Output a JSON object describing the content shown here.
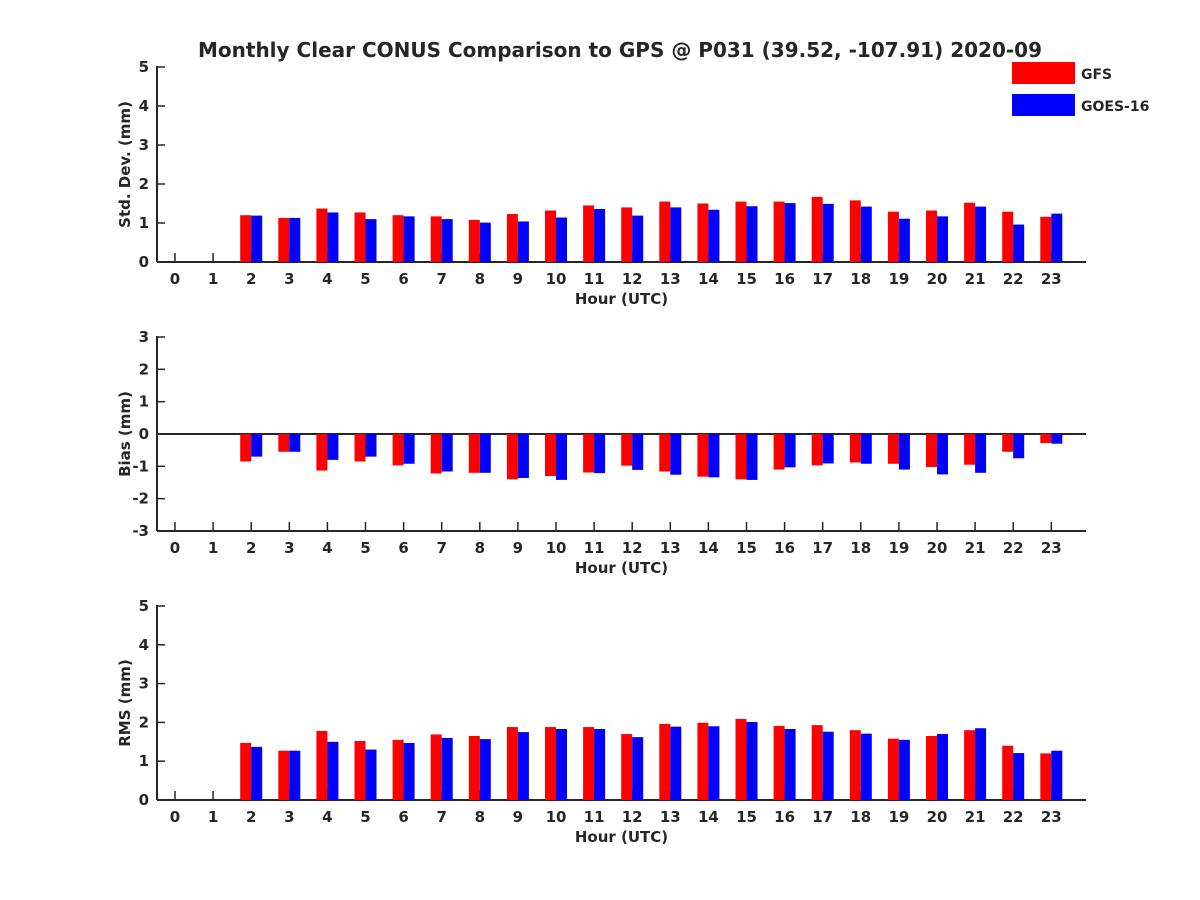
{
  "chart_data": {
    "type": "bar",
    "title": "Monthly Clear CONUS Comparison to GPS @ P031 (39.52, -107.91) 2020-09",
    "legend": {
      "placement": "top-right",
      "entries": [
        "GFS",
        "GOES-16"
      ]
    },
    "colors": {
      "GFS": "#ff0000",
      "GOES-16": "#0000ff"
    },
    "categories": [
      "0",
      "1",
      "2",
      "3",
      "4",
      "5",
      "6",
      "7",
      "8",
      "9",
      "10",
      "11",
      "12",
      "13",
      "14",
      "15",
      "16",
      "17",
      "18",
      "19",
      "20",
      "21",
      "22",
      "23"
    ],
    "panels": [
      {
        "ylabel": "Std. Dev. (mm)",
        "xlabel": "Hour (UTC)",
        "ylim": [
          0,
          5
        ],
        "yticks": [
          0,
          1,
          2,
          3,
          4,
          5
        ],
        "zero_line": false,
        "series": [
          {
            "name": "GFS",
            "values": [
              null,
              null,
              1.2,
              1.13,
              1.37,
              1.27,
              1.2,
              1.17,
              1.08,
              1.23,
              1.32,
              1.45,
              1.4,
              1.55,
              1.5,
              1.55,
              1.55,
              1.67,
              1.58,
              1.29,
              1.32,
              1.52,
              1.29,
              1.16
            ]
          },
          {
            "name": "GOES-16",
            "values": [
              null,
              null,
              1.19,
              1.13,
              1.27,
              1.1,
              1.17,
              1.1,
              1.01,
              1.04,
              1.14,
              1.36,
              1.19,
              1.4,
              1.34,
              1.43,
              1.51,
              1.49,
              1.42,
              1.11,
              1.17,
              1.42,
              0.96,
              1.24
            ]
          }
        ]
      },
      {
        "ylabel": "Bias (mm)",
        "xlabel": "Hour (UTC)",
        "ylim": [
          -3,
          3
        ],
        "yticks": [
          -3,
          -2,
          -1,
          0,
          1,
          2,
          3
        ],
        "zero_line": true,
        "series": [
          {
            "name": "GFS",
            "values": [
              null,
              null,
              -0.85,
              -0.55,
              -1.13,
              -0.85,
              -0.97,
              -1.22,
              -1.2,
              -1.4,
              -1.3,
              -1.19,
              -0.98,
              -1.16,
              -1.32,
              -1.4,
              -1.1,
              -0.97,
              -0.88,
              -0.92,
              -1.02,
              -0.95,
              -0.55,
              -0.28
            ]
          },
          {
            "name": "GOES-16",
            "values": [
              null,
              null,
              -0.7,
              -0.55,
              -0.8,
              -0.7,
              -0.92,
              -1.16,
              -1.2,
              -1.36,
              -1.42,
              -1.21,
              -1.11,
              -1.26,
              -1.34,
              -1.42,
              -1.03,
              -0.91,
              -0.92,
              -1.1,
              -1.25,
              -1.2,
              -0.75,
              -0.3
            ]
          }
        ]
      },
      {
        "ylabel": "RMS (mm)",
        "xlabel": "Hour (UTC)",
        "ylim": [
          0,
          5
        ],
        "yticks": [
          0,
          1,
          2,
          3,
          4,
          5
        ],
        "zero_line": false,
        "series": [
          {
            "name": "GFS",
            "values": [
              null,
              null,
              1.47,
              1.27,
              1.78,
              1.52,
              1.55,
              1.69,
              1.65,
              1.88,
              1.88,
              1.88,
              1.7,
              1.96,
              1.99,
              2.09,
              1.91,
              1.93,
              1.8,
              1.58,
              1.65,
              1.8,
              1.4,
              1.2
            ]
          },
          {
            "name": "GOES-16",
            "values": [
              null,
              null,
              1.37,
              1.27,
              1.5,
              1.3,
              1.47,
              1.6,
              1.57,
              1.75,
              1.83,
              1.83,
              1.62,
              1.89,
              1.9,
              2.01,
              1.83,
              1.76,
              1.71,
              1.55,
              1.7,
              1.85,
              1.21,
              1.27
            ]
          }
        ]
      }
    ]
  }
}
